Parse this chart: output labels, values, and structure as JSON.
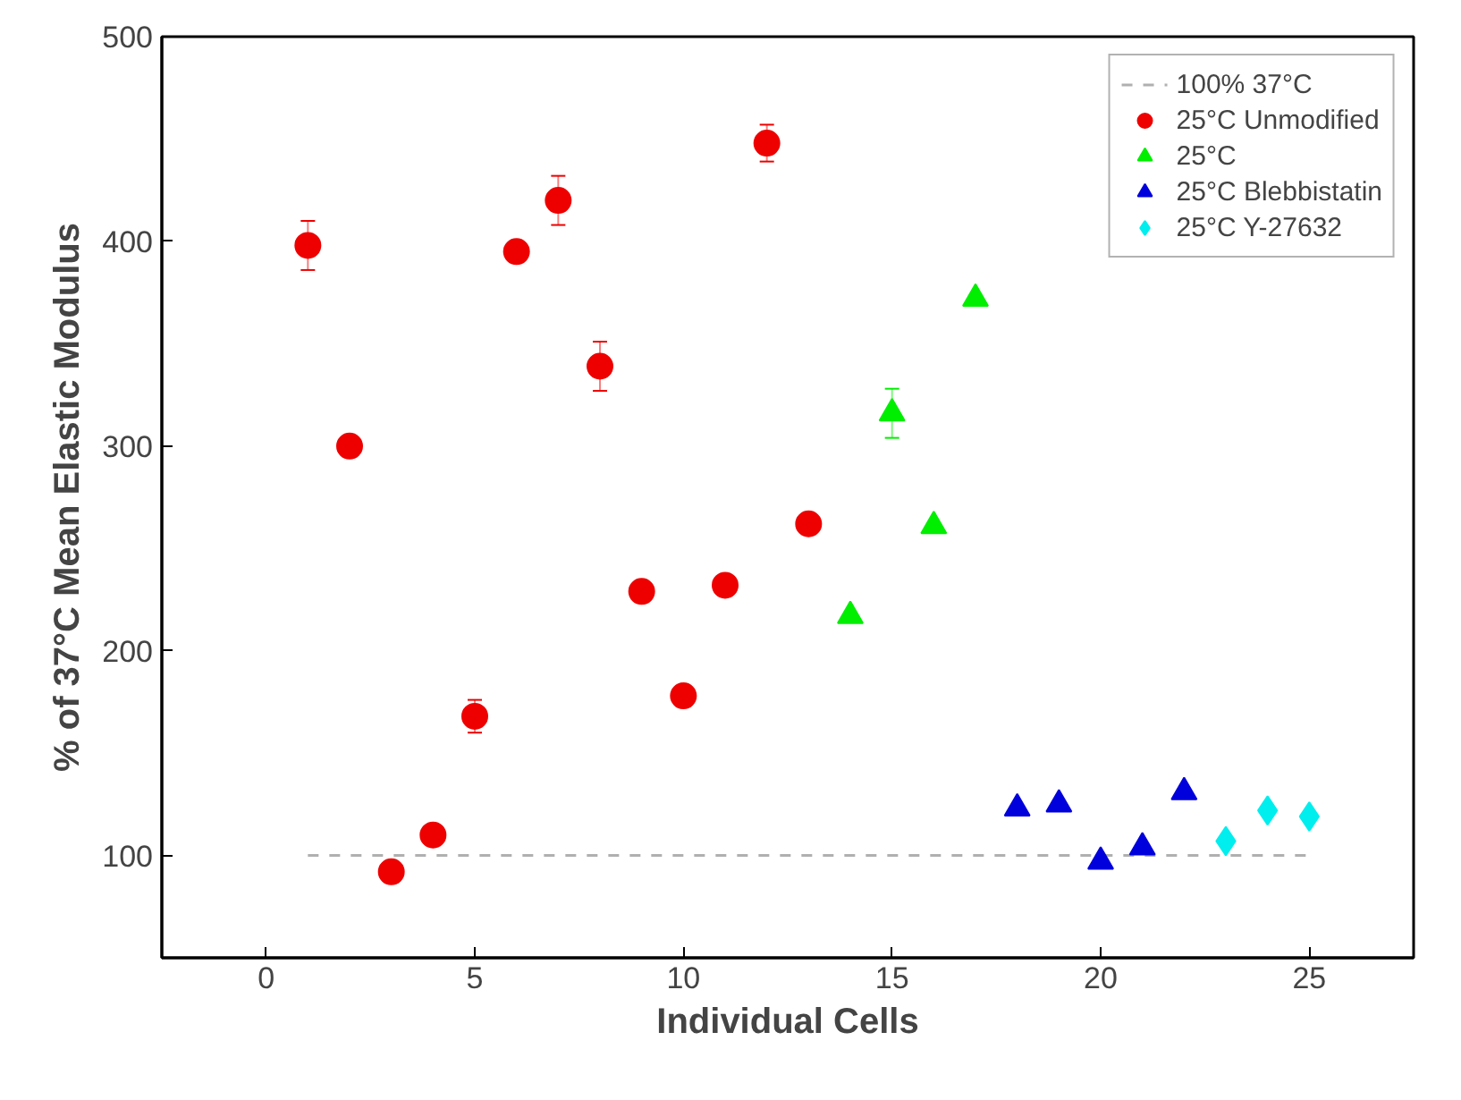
{
  "chart_data": {
    "type": "scatter",
    "xlabel": "Individual Cells",
    "ylabel": "% of 37°C Mean Elastic Modulus",
    "xlim": [
      -2.5,
      27.5
    ],
    "ylim": [
      50,
      500
    ],
    "xticks": [
      0,
      5,
      10,
      15,
      20,
      25
    ],
    "yticks": [
      100,
      200,
      300,
      400,
      500
    ],
    "grid": false,
    "legend": "top right",
    "series": [
      {
        "name": "100% 37°C",
        "type": "line",
        "line_style": "dashed",
        "marker": "none",
        "color": "#b0b0b0",
        "x": [
          1,
          25
        ],
        "values": [
          100,
          100
        ]
      },
      {
        "name": "25°C Unmodified",
        "marker": "circle",
        "color": "#ee0000",
        "x": [
          1,
          2,
          3,
          4,
          5,
          6,
          7,
          8,
          9,
          10,
          11,
          12,
          13
        ],
        "values": [
          398,
          300,
          92,
          110,
          168,
          395,
          420,
          339,
          229,
          178,
          232,
          448,
          262
        ],
        "errors": [
          12,
          null,
          null,
          null,
          8,
          null,
          12,
          12,
          null,
          null,
          null,
          9,
          null
        ]
      },
      {
        "name": "25°C",
        "marker": "triangle",
        "color": "#00ee00",
        "x": [
          14,
          15,
          16,
          17
        ],
        "values": [
          217,
          316,
          261,
          372
        ],
        "errors": [
          null,
          12,
          null,
          null
        ]
      },
      {
        "name": "25°C Blebbistatin",
        "marker": "triangle",
        "color": "#0000dd",
        "x": [
          18,
          19,
          20,
          21,
          22
        ],
        "values": [
          123,
          125,
          97,
          104,
          131
        ]
      },
      {
        "name": "25°C Y-27632",
        "marker": "diamond",
        "color": "#00eeee",
        "x": [
          23,
          24,
          25
        ],
        "values": [
          107,
          122,
          119
        ]
      }
    ]
  }
}
